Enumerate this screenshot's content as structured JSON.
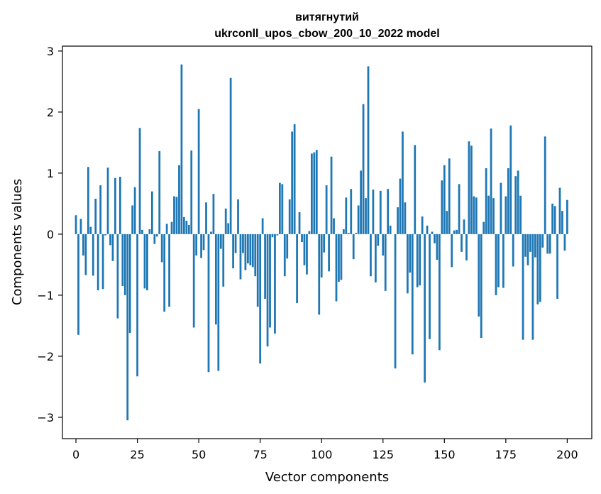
{
  "chart_data": {
    "type": "bar",
    "title_line1": "витягнутий",
    "title_line2": "ukrconll_upos_cbow_200_10_2022 model",
    "xlabel": "Vector components",
    "ylabel": "Components values",
    "xlim": [
      -5.5,
      210
    ],
    "ylim": [
      -3.35,
      3.08
    ],
    "xticks": [
      0,
      25,
      50,
      75,
      100,
      125,
      150,
      175,
      200
    ],
    "yticks": [
      -3,
      -2,
      -1,
      0,
      1,
      2,
      3
    ],
    "ytick_labels": [
      "−3",
      "−2",
      "−1",
      "0",
      "1",
      "2",
      "3"
    ],
    "bar_color": "#1f77b4",
    "values": [
      0.31,
      -1.65,
      0.25,
      -0.35,
      -0.67,
      1.1,
      0.12,
      -0.68,
      0.58,
      -0.92,
      0.8,
      -0.9,
      -0.02,
      1.09,
      -0.18,
      -0.44,
      0.92,
      -1.38,
      0.94,
      -0.85,
      -1.0,
      -3.05,
      -1.62,
      0.47,
      0.77,
      -2.33,
      1.74,
      0.07,
      -0.89,
      -0.92,
      0.08,
      0.7,
      -0.16,
      -0.04,
      1.36,
      -0.46,
      -1.27,
      0.17,
      -1.19,
      0.2,
      0.62,
      0.61,
      1.13,
      2.78,
      0.28,
      0.22,
      0.15,
      1.37,
      -1.53,
      -0.35,
      2.05,
      -0.39,
      -0.26,
      0.52,
      -2.26,
      0.04,
      0.66,
      -1.48,
      -2.24,
      -0.24,
      -0.86,
      0.42,
      0.18,
      2.56,
      -0.56,
      -0.31,
      0.57,
      -0.74,
      -0.31,
      -0.59,
      -0.48,
      -0.51,
      -0.54,
      -0.69,
      -1.19,
      -2.12,
      0.26,
      -1.06,
      -1.84,
      -1.53,
      -0.05,
      -1.63,
      -0.02,
      0.84,
      0.82,
      -0.69,
      -0.4,
      0.57,
      1.68,
      1.8,
      -1.13,
      0.36,
      -0.13,
      -0.51,
      -0.66,
      0.05,
      1.32,
      1.34,
      1.38,
      -1.32,
      -0.71,
      -0.3,
      0.8,
      -0.61,
      1.27,
      0.26,
      -1.1,
      -0.78,
      -0.75,
      0.08,
      0.6,
      0.02,
      0.74,
      -0.41,
      0.02,
      0.47,
      1.04,
      2.13,
      0.59,
      2.75,
      -0.69,
      0.73,
      -0.79,
      -0.19,
      0.71,
      -0.35,
      -0.93,
      0.74,
      0.14,
      0.0,
      -2.2,
      0.44,
      0.91,
      1.68,
      0.52,
      -0.97,
      -0.63,
      -1.97,
      1.46,
      -0.87,
      -0.84,
      0.29,
      -2.43,
      0.14,
      -1.72,
      0.04,
      -0.15,
      -0.42,
      -1.9,
      0.88,
      1.13,
      0.38,
      1.24,
      -0.54,
      0.06,
      0.07,
      0.82,
      -0.29,
      0.24,
      -0.43,
      1.52,
      1.45,
      0.62,
      0.6,
      -1.35,
      -1.7,
      0.2,
      1.08,
      0.63,
      1.73,
      0.59,
      -1.0,
      -0.87,
      0.84,
      -0.88,
      0.62,
      1.08,
      1.78,
      -0.53,
      0.95,
      1.04,
      0.63,
      -1.73,
      -0.37,
      -0.51,
      -0.29,
      -1.73,
      -0.38,
      -1.15,
      -1.11,
      -0.22,
      1.6,
      -0.32,
      -0.32,
      0.5,
      0.46,
      -1.06,
      0.76,
      0.38,
      -0.27,
      0.56
    ]
  }
}
